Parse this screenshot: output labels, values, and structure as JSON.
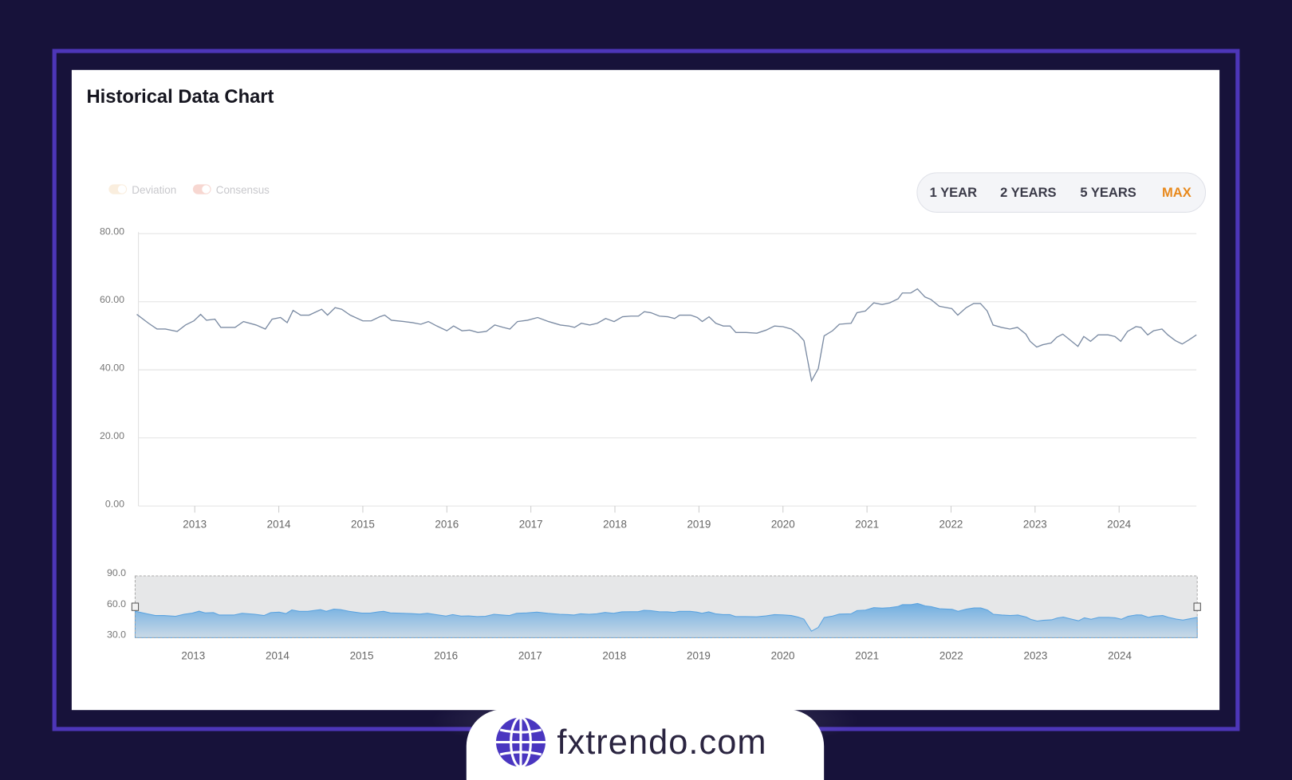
{
  "page": {
    "title": "Historical Data Chart",
    "brand": "fxtrendo.com",
    "controls": [
      {
        "label": "1 YEAR",
        "active": false
      },
      {
        "label": "2 YEARS",
        "active": false
      },
      {
        "label": "5 YEARS",
        "active": false
      },
      {
        "label": "MAX",
        "active": true
      }
    ]
  },
  "chart_data": {
    "type": "line",
    "legend": [
      {
        "name": "Deviation",
        "color": "#f6e2c8"
      },
      {
        "name": "Consensus",
        "color": "#f2bdb3"
      }
    ],
    "x": [
      2012.31,
      2012.45,
      2012.55,
      2012.65,
      2012.79,
      2012.89,
      2012.99,
      2013.07,
      2013.14,
      2013.24,
      2013.31,
      2013.48,
      2013.58,
      2013.73,
      2013.84,
      2013.92,
      2014.02,
      2014.1,
      2014.17,
      2014.26,
      2014.36,
      2014.51,
      2014.58,
      2014.67,
      2014.75,
      2014.85,
      2015.0,
      2015.1,
      2015.2,
      2015.26,
      2015.34,
      2015.49,
      2015.59,
      2015.69,
      2015.78,
      2015.88,
      2016.0,
      2016.08,
      2016.18,
      2016.27,
      2016.37,
      2016.47,
      2016.57,
      2016.67,
      2016.75,
      2016.84,
      2016.96,
      2017.08,
      2017.21,
      2017.35,
      2017.45,
      2017.52,
      2017.6,
      2017.7,
      2017.79,
      2017.89,
      2017.99,
      2018.09,
      2018.19,
      2018.28,
      2018.35,
      2018.43,
      2018.53,
      2018.63,
      2018.71,
      2018.77,
      2018.9,
      2018.98,
      2019.04,
      2019.12,
      2019.2,
      2019.29,
      2019.37,
      2019.44,
      2019.56,
      2019.69,
      2019.8,
      2019.9,
      2020.0,
      2020.1,
      2020.18,
      2020.25,
      2020.34,
      2020.42,
      2020.49,
      2020.59,
      2020.67,
      2020.81,
      2020.88,
      2020.98,
      2021.08,
      2021.18,
      2021.27,
      2021.37,
      2021.42,
      2021.52,
      2021.6,
      2021.69,
      2021.76,
      2021.86,
      2022.01,
      2022.08,
      2022.18,
      2022.27,
      2022.35,
      2022.43,
      2022.5,
      2022.6,
      2022.7,
      2022.79,
      2022.89,
      2022.94,
      2023.02,
      2023.09,
      2023.19,
      2023.26,
      2023.33,
      2023.4,
      2023.51,
      2023.58,
      2023.66,
      2023.75,
      2023.87,
      2023.95,
      2024.02,
      2024.1,
      2024.2,
      2024.26,
      2024.34,
      2024.41,
      2024.51,
      2024.58,
      2024.67,
      2024.75,
      2024.83,
      2024.92
    ],
    "series": [
      {
        "color": "#7b8ba3",
        "values": [
          55.8,
          53.2,
          51.5,
          51.5,
          50.8,
          52.7,
          53.9,
          55.8,
          54.1,
          54.4,
          52.0,
          52.0,
          53.7,
          52.7,
          51.5,
          54.4,
          54.9,
          53.4,
          57.0,
          55.6,
          55.6,
          57.3,
          55.6,
          57.8,
          57.3,
          55.6,
          53.9,
          53.9,
          55.1,
          55.6,
          54.1,
          53.7,
          53.4,
          52.9,
          53.7,
          52.4,
          51.0,
          52.4,
          51.0,
          51.2,
          50.5,
          50.8,
          52.7,
          52.0,
          51.5,
          53.7,
          54.1,
          54.9,
          53.7,
          52.7,
          52.4,
          52.0,
          53.2,
          52.7,
          53.2,
          54.6,
          53.7,
          55.1,
          55.3,
          55.3,
          56.6,
          56.3,
          55.3,
          55.1,
          54.6,
          55.6,
          55.6,
          54.9,
          53.7,
          55.1,
          53.2,
          52.4,
          52.4,
          50.5,
          50.5,
          50.3,
          51.2,
          52.4,
          52.2,
          51.5,
          50.0,
          48.1,
          36.3,
          39.9,
          49.5,
          51.0,
          52.9,
          53.2,
          56.3,
          56.8,
          59.2,
          58.7,
          59.2,
          60.4,
          62.1,
          62.1,
          63.3,
          60.9,
          60.2,
          58.2,
          57.5,
          55.6,
          57.8,
          59.0,
          59.0,
          56.8,
          52.7,
          52.0,
          51.5,
          52.0,
          50.0,
          47.9,
          46.2,
          46.9,
          47.4,
          49.1,
          50.0,
          48.6,
          46.4,
          49.3,
          47.9,
          49.8,
          49.8,
          49.3,
          47.9,
          50.8,
          52.2,
          52.0,
          49.8,
          51.0,
          51.5,
          49.8,
          48.1,
          47.1,
          48.3,
          49.8
        ]
      }
    ],
    "xlim": [
      2012.31,
      2024.92
    ],
    "xticks": [
      2013,
      2014,
      2015,
      2016,
      2017,
      2018,
      2019,
      2020,
      2021,
      2022,
      2023,
      2024
    ],
    "ylim": [
      0,
      80
    ],
    "yticks": [
      {
        "value": 0,
        "label": "0.00"
      },
      {
        "value": 20,
        "label": "20.00"
      },
      {
        "value": 40,
        "label": "40.00"
      },
      {
        "value": 60,
        "label": "60.00"
      },
      {
        "value": 80,
        "label": "80.00"
      }
    ],
    "grid": true,
    "navigator": {
      "ylim": [
        30,
        90
      ],
      "yticks": [
        {
          "value": 30,
          "label": "30.0"
        },
        {
          "value": 60,
          "label": "60.0"
        },
        {
          "value": 90,
          "label": "90.0"
        }
      ],
      "color": "#5aa3e0"
    }
  }
}
